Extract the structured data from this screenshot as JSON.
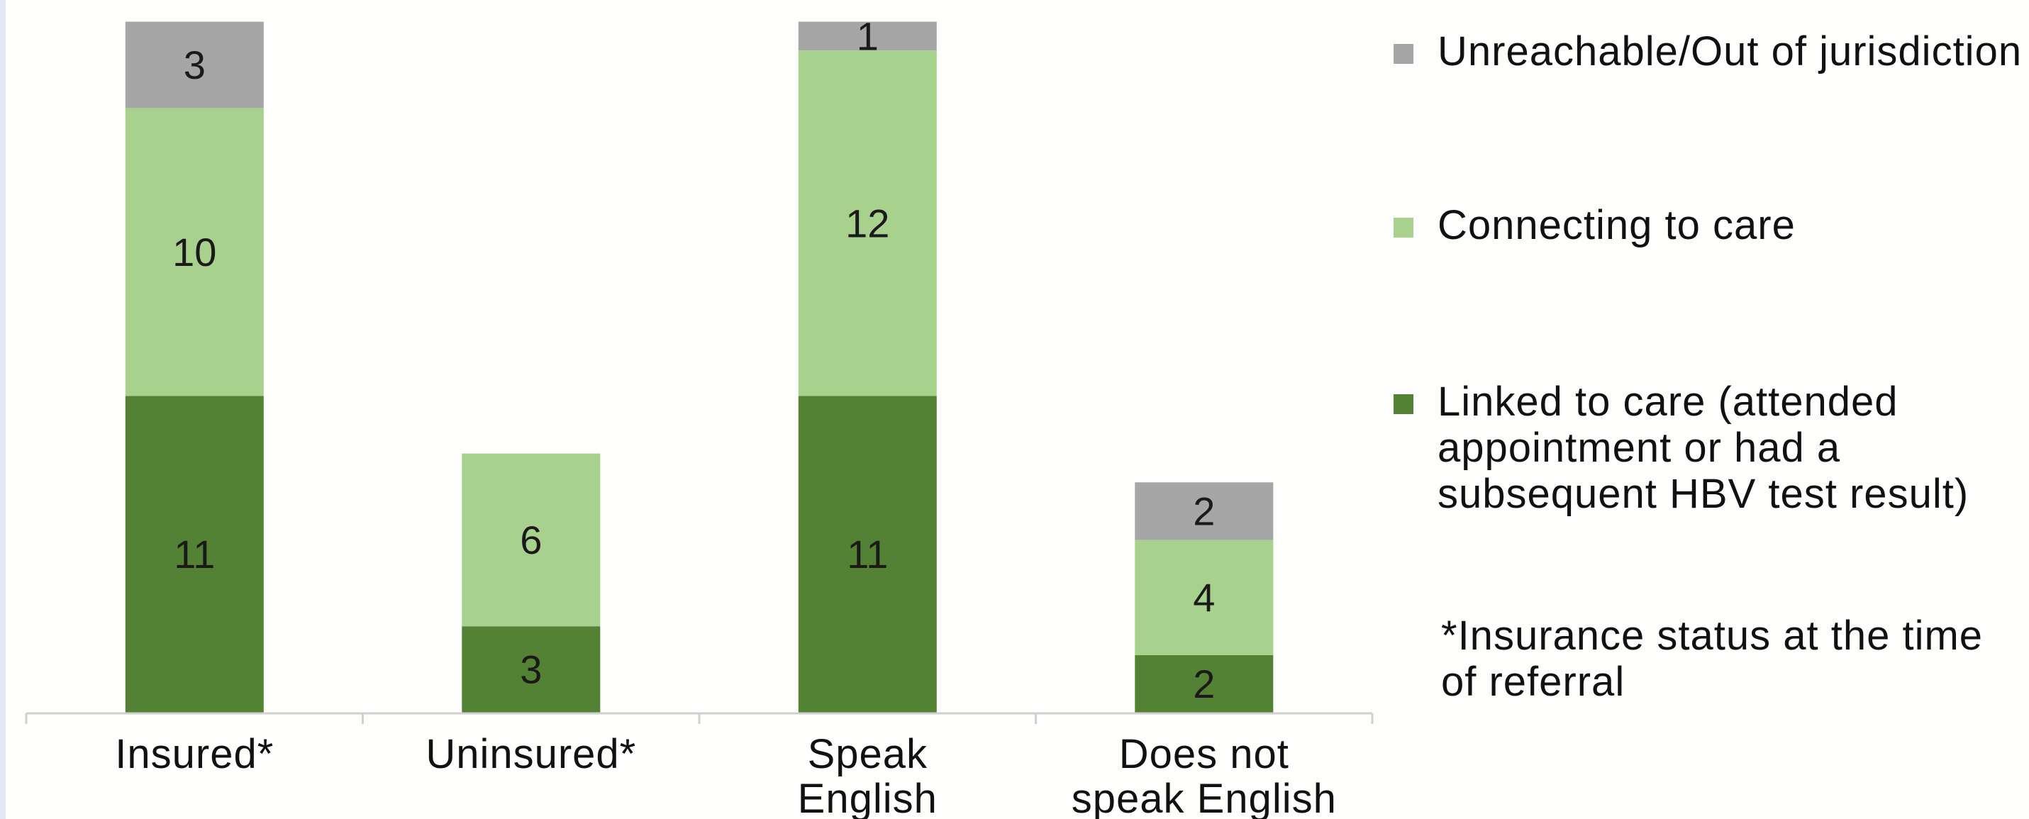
{
  "chart_data": {
    "type": "bar",
    "stacked": true,
    "categories": [
      "Insured*",
      "Uninsured*",
      "Speak English",
      "Does not speak English"
    ],
    "series": [
      {
        "name": "Linked to care (attended appointment or had a subsequent HBV test result)",
        "values": [
          11,
          3,
          11,
          2
        ],
        "color": "#548235"
      },
      {
        "name": "Connecting to care",
        "values": [
          10,
          6,
          12,
          4
        ],
        "color": "#a9d18e"
      },
      {
        "name": "Unreachable/Out of jurisdiction",
        "values": [
          3,
          0,
          1,
          2
        ],
        "color": "#a6a6a6"
      }
    ],
    "data_labels": true,
    "ylim": [
      0,
      24
    ],
    "grid": false,
    "legend_placement": "right",
    "legend_order": [
      "Unreachable/Out of jurisdiction",
      "Connecting to care",
      "Linked to care (attended appointment or had a subsequent HBV test result)"
    ],
    "axis_color": "#d0d0d0"
  },
  "legend": {
    "unreachable": "Unreachable/Out of jurisdiction",
    "connecting": "Connecting to care",
    "linked": "Linked to care (attended appointment or had a subsequent HBV test result)"
  },
  "footnote": "*Insurance status at the time of referral"
}
